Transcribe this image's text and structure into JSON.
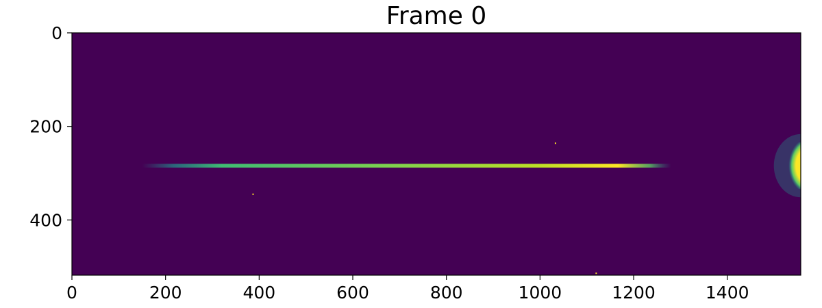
{
  "chart_data": {
    "type": "heatmap",
    "title": "Frame 0",
    "xlabel": "",
    "ylabel": "",
    "xlim": [
      0,
      1557
    ],
    "ylim": [
      518,
      0
    ],
    "y_axis_inverted": true,
    "colormap": "viridis",
    "background_color": "#440154",
    "x_ticks": [
      0,
      200,
      400,
      600,
      800,
      1000,
      1200,
      1400
    ],
    "x_tick_labels": [
      "0",
      "200",
      "400",
      "600",
      "800",
      "1000",
      "1200",
      "1400"
    ],
    "y_ticks": [
      0,
      200,
      400
    ],
    "y_tick_labels": [
      "0",
      "200",
      "400"
    ],
    "features": [
      {
        "kind": "streak",
        "x_start": 150,
        "x_end": 1280,
        "y": 284,
        "half_width": 4,
        "core_color": "#fde725",
        "edge_color": "#21918c"
      },
      {
        "kind": "bright-blob",
        "x_start": 1520,
        "x_end": 1557,
        "y_center": 284,
        "half_height": 50,
        "core_color": "#fde725",
        "edge_color": "#21918c"
      },
      {
        "kind": "hot-pixel",
        "x": 1033,
        "y": 236,
        "color": "#fde725"
      },
      {
        "kind": "hot-pixel",
        "x": 387,
        "y": 345,
        "color": "#fde725"
      },
      {
        "kind": "hot-pixel",
        "x": 1120,
        "y": 514,
        "color": "#fde725"
      }
    ],
    "grid": false,
    "legend": "none"
  }
}
